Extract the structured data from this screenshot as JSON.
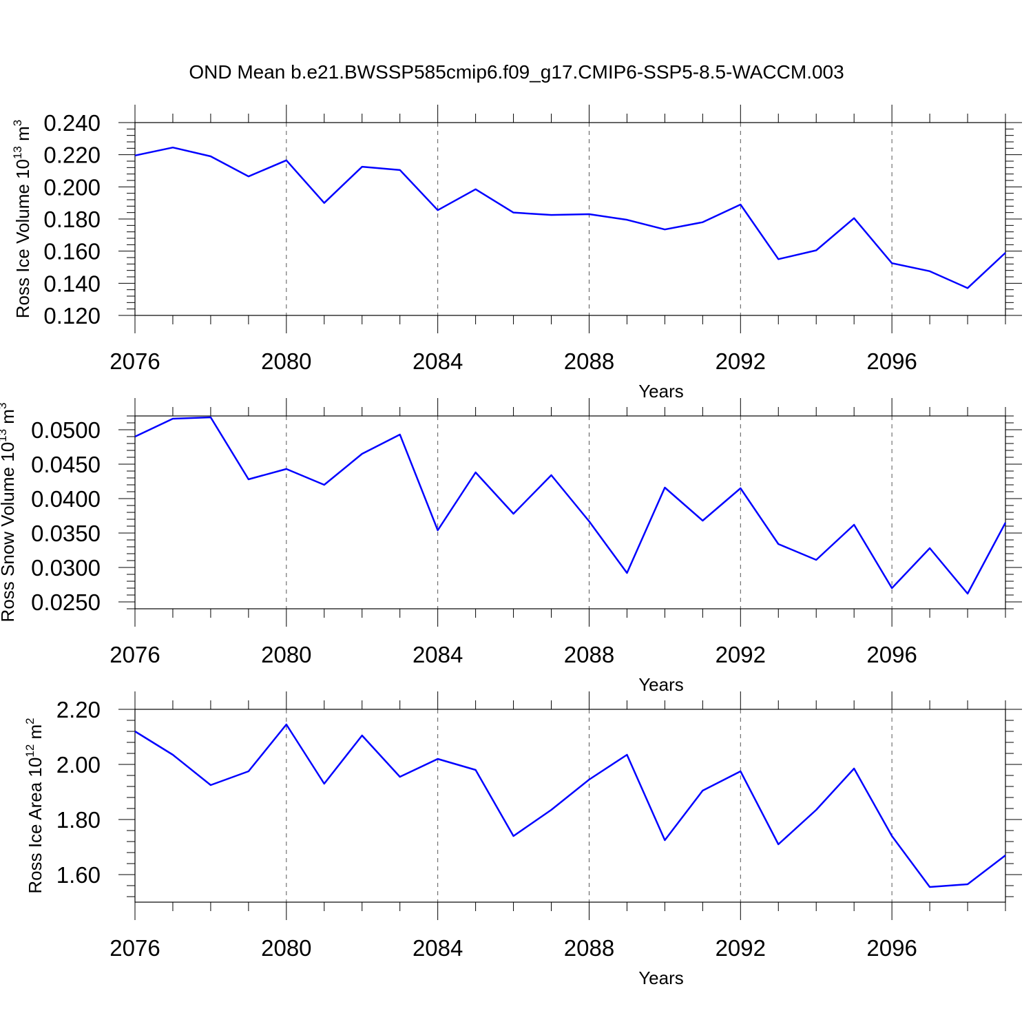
{
  "title": "OND Mean b.e21.BWSSP585cmip6.f09_g17.CMIP6-SSP5-8.5-WACCM.003",
  "colors": {
    "line": "#0000ff",
    "grid": "#555555",
    "frame": "#000000"
  },
  "chart_data": [
    {
      "type": "line",
      "ylabel": "Ross Ice Volume 10",
      "ylabel_exp": "13",
      "ylabel_unit": " m",
      "ylabel_unit_exp": "3",
      "xlabel": "Years",
      "xlim": [
        2076,
        2099
      ],
      "ylim": [
        0.12,
        0.24
      ],
      "xticks": [
        2076,
        2080,
        2084,
        2088,
        2092,
        2096
      ],
      "yticks": [
        0.12,
        0.14,
        0.16,
        0.18,
        0.2,
        0.22,
        0.24
      ],
      "ytick_labels": [
        "0.120",
        "0.140",
        "0.160",
        "0.180",
        "0.200",
        "0.220",
        "0.240"
      ],
      "grid": "x-dashed",
      "x": [
        2076,
        2077,
        2078,
        2079,
        2080,
        2081,
        2082,
        2083,
        2084,
        2085,
        2086,
        2087,
        2088,
        2089,
        2090,
        2091,
        2092,
        2093,
        2094,
        2095,
        2096,
        2097,
        2098,
        2099
      ],
      "y": [
        0.2195,
        0.2245,
        0.219,
        0.2065,
        0.2165,
        0.19,
        0.2125,
        0.2105,
        0.1855,
        0.1985,
        0.184,
        0.1825,
        0.183,
        0.1795,
        0.1735,
        0.178,
        0.189,
        0.155,
        0.1605,
        0.1805,
        0.1525,
        0.1475,
        0.137,
        0.159
      ]
    },
    {
      "type": "line",
      "ylabel": "Ross Snow Volume 10",
      "ylabel_exp": "13",
      "ylabel_unit": " m",
      "ylabel_unit_exp": "3",
      "xlabel": "Years",
      "xlim": [
        2076,
        2099
      ],
      "ylim": [
        0.024,
        0.052
      ],
      "xticks": [
        2076,
        2080,
        2084,
        2088,
        2092,
        2096
      ],
      "yticks": [
        0.025,
        0.03,
        0.035,
        0.04,
        0.045,
        0.05
      ],
      "ytick_labels": [
        "0.0250",
        "0.0300",
        "0.0350",
        "0.0400",
        "0.0450",
        "0.0500"
      ],
      "grid": "x-dashed",
      "x": [
        2076,
        2077,
        2078,
        2079,
        2080,
        2081,
        2082,
        2083,
        2084,
        2085,
        2086,
        2087,
        2088,
        2089,
        2090,
        2091,
        2092,
        2093,
        2094,
        2095,
        2096,
        2097,
        2098,
        2099
      ],
      "y": [
        0.049,
        0.0516,
        0.0518,
        0.0428,
        0.0443,
        0.042,
        0.0465,
        0.0493,
        0.0354,
        0.0438,
        0.0378,
        0.0434,
        0.0367,
        0.0292,
        0.0416,
        0.0368,
        0.0415,
        0.0334,
        0.0311,
        0.0362,
        0.027,
        0.0328,
        0.0262,
        0.0365
      ]
    },
    {
      "type": "line",
      "ylabel": "Ross Ice Area 10",
      "ylabel_exp": "12",
      "ylabel_unit": " m",
      "ylabel_unit_exp": "2",
      "xlabel": "Years",
      "xlim": [
        2076,
        2099
      ],
      "ylim": [
        1.5,
        2.2
      ],
      "xticks": [
        2076,
        2080,
        2084,
        2088,
        2092,
        2096
      ],
      "yticks": [
        1.6,
        1.8,
        2.0,
        2.2
      ],
      "ytick_labels": [
        "1.60",
        "1.80",
        "2.00",
        "2.20"
      ],
      "grid": "x-dashed",
      "x": [
        2076,
        2077,
        2078,
        2079,
        2080,
        2081,
        2082,
        2083,
        2084,
        2085,
        2086,
        2087,
        2088,
        2089,
        2090,
        2091,
        2092,
        2093,
        2094,
        2095,
        2096,
        2097,
        2098,
        2099
      ],
      "y": [
        2.12,
        2.035,
        1.925,
        1.975,
        2.145,
        1.93,
        2.105,
        1.955,
        2.02,
        1.98,
        1.74,
        1.835,
        1.945,
        2.035,
        1.725,
        1.905,
        1.975,
        1.71,
        1.835,
        1.985,
        1.74,
        1.555,
        1.565,
        1.67
      ]
    }
  ]
}
